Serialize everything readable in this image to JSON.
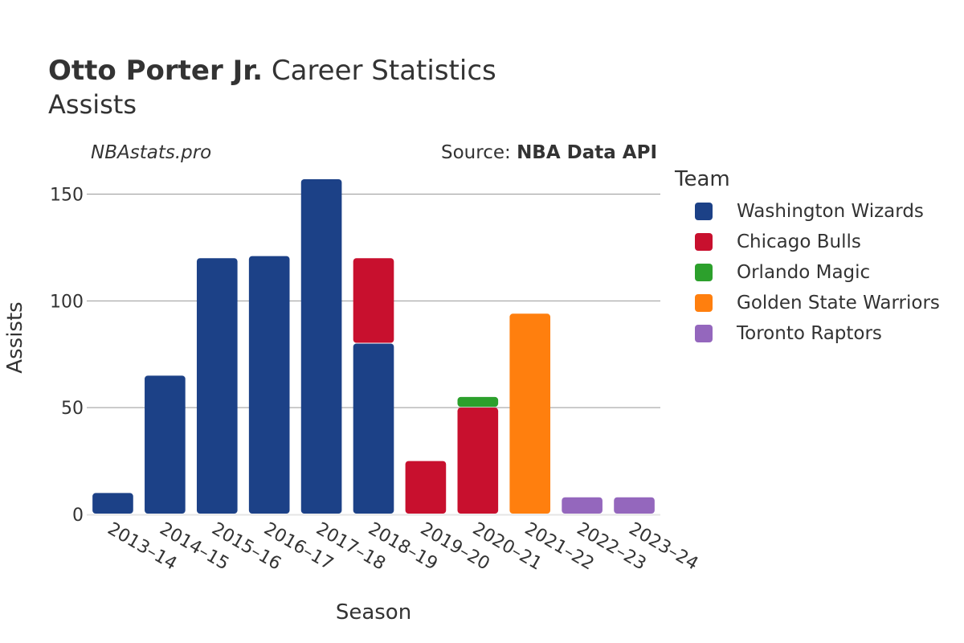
{
  "header": {
    "player_name": "Otto Porter Jr.",
    "title_rest": "Career Statistics",
    "subtitle": "Assists",
    "brand": "NBAstats.pro",
    "source_prefix": "Source: ",
    "source_name": "NBA Data API"
  },
  "legend": {
    "title": "Team",
    "items": [
      {
        "label": "Washington Wizards",
        "color": "#1c4187"
      },
      {
        "label": "Chicago Bulls",
        "color": "#c8102e"
      },
      {
        "label": "Orlando Magic",
        "color": "#2ca02c"
      },
      {
        "label": "Golden State Warriors",
        "color": "#ff7f0e"
      },
      {
        "label": "Toronto Raptors",
        "color": "#9467bd"
      }
    ]
  },
  "chart_data": {
    "type": "bar",
    "stacked": true,
    "xlabel": "Season",
    "ylabel": "Assists",
    "ylim": [
      0,
      163
    ],
    "yticks": [
      0,
      50,
      100,
      150
    ],
    "grid": true,
    "legend_position": "right",
    "categories": [
      "2013–14",
      "2014–15",
      "2015–16",
      "2016–17",
      "2017–18",
      "2018–19",
      "2019–20",
      "2020–21",
      "2021–22",
      "2022–23",
      "2023–24"
    ],
    "series": [
      {
        "name": "Washington Wizards",
        "color": "#1c4187",
        "values": [
          10,
          65,
          120,
          121,
          157,
          80,
          0,
          0,
          0,
          0,
          0
        ]
      },
      {
        "name": "Chicago Bulls",
        "color": "#c8102e",
        "values": [
          0,
          0,
          0,
          0,
          0,
          40,
          25,
          50,
          0,
          0,
          0
        ]
      },
      {
        "name": "Orlando Magic",
        "color": "#2ca02c",
        "values": [
          0,
          0,
          0,
          0,
          0,
          0,
          0,
          5,
          0,
          0,
          0
        ]
      },
      {
        "name": "Golden State Warriors",
        "color": "#ff7f0e",
        "values": [
          0,
          0,
          0,
          0,
          0,
          0,
          0,
          0,
          94,
          0,
          0
        ]
      },
      {
        "name": "Toronto Raptors",
        "color": "#9467bd",
        "values": [
          0,
          0,
          0,
          0,
          0,
          0,
          0,
          0,
          0,
          8,
          8
        ]
      }
    ]
  }
}
